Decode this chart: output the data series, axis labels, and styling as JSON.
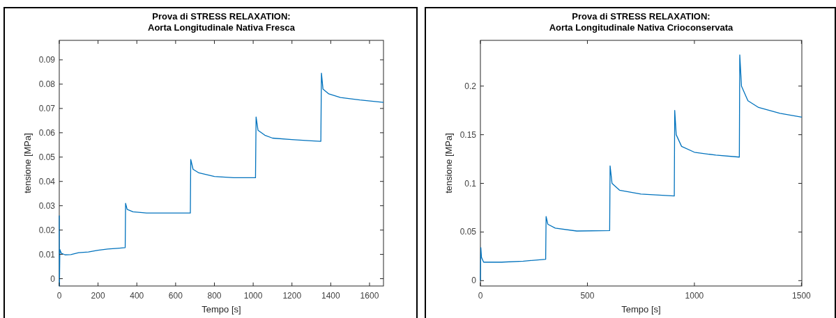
{
  "chart_data": [
    {
      "type": "line",
      "title": "Prova di STRESS RELAXATION:\nAorta Longitudinale Nativa Fresca",
      "xlabel": "Tempo [s]",
      "ylabel": "tensione [MPa]",
      "xlim": [
        0,
        1672
      ],
      "ylim": [
        -0.003,
        0.098
      ],
      "xticks": [
        0,
        200,
        400,
        600,
        800,
        1000,
        1200,
        1400,
        1600
      ],
      "yticks": [
        0,
        0.01,
        0.02,
        0.03,
        0.04,
        0.05,
        0.06,
        0.07,
        0.08,
        0.09
      ],
      "grid": false,
      "line_style": "solid",
      "series": [
        {
          "color": "#0072bd",
          "x": [
            0,
            1,
            3,
            10,
            30,
            60,
            100,
            150,
            200,
            250,
            300,
            340,
            342,
            350,
            380,
            450,
            550,
            676,
            678,
            690,
            720,
            800,
            900,
            1012,
            1015,
            1025,
            1060,
            1100,
            1200,
            1300,
            1349,
            1352,
            1360,
            1390,
            1450,
            1550,
            1672
          ],
          "values": [
            0.026,
            -0.003,
            0.012,
            0.0105,
            0.0098,
            0.0099,
            0.0107,
            0.011,
            0.0117,
            0.0122,
            0.0125,
            0.0128,
            0.031,
            0.0285,
            0.0275,
            0.027,
            0.027,
            0.027,
            0.049,
            0.045,
            0.0435,
            0.042,
            0.0415,
            0.0415,
            0.0665,
            0.061,
            0.059,
            0.0578,
            0.0572,
            0.0567,
            0.0565,
            0.0845,
            0.078,
            0.076,
            0.0745,
            0.0735,
            0.0725
          ]
        }
      ]
    },
    {
      "type": "line",
      "title": "Prova di STRESS RELAXATION:\nAorta Longitudinale Nativa Crioconservata",
      "xlabel": "Tempo [s]",
      "ylabel": "tensione [MPa]",
      "xlim": [
        0,
        1502
      ],
      "ylim": [
        -0.0055,
        0.247
      ],
      "xticks": [
        0,
        500,
        1000,
        1500
      ],
      "yticks": [
        0,
        0.05,
        0.1,
        0.15,
        0.2
      ],
      "grid": false,
      "line_style": "solid",
      "series": [
        {
          "color": "#0072bd",
          "x": [
            0,
            2,
            5,
            15,
            100,
            200,
            305,
            307,
            315,
            350,
            450,
            604,
            606,
            615,
            650,
            750,
            906,
            908,
            915,
            940,
            1000,
            1100,
            1210,
            1212,
            1220,
            1250,
            1300,
            1400,
            1502
          ],
          "values": [
            0,
            0.034,
            0.024,
            0.019,
            0.019,
            0.02,
            0.022,
            0.066,
            0.058,
            0.054,
            0.051,
            0.0515,
            0.118,
            0.1,
            0.093,
            0.089,
            0.087,
            0.175,
            0.15,
            0.138,
            0.132,
            0.129,
            0.127,
            0.232,
            0.2,
            0.185,
            0.178,
            0.172,
            0.168
          ]
        }
      ]
    }
  ]
}
